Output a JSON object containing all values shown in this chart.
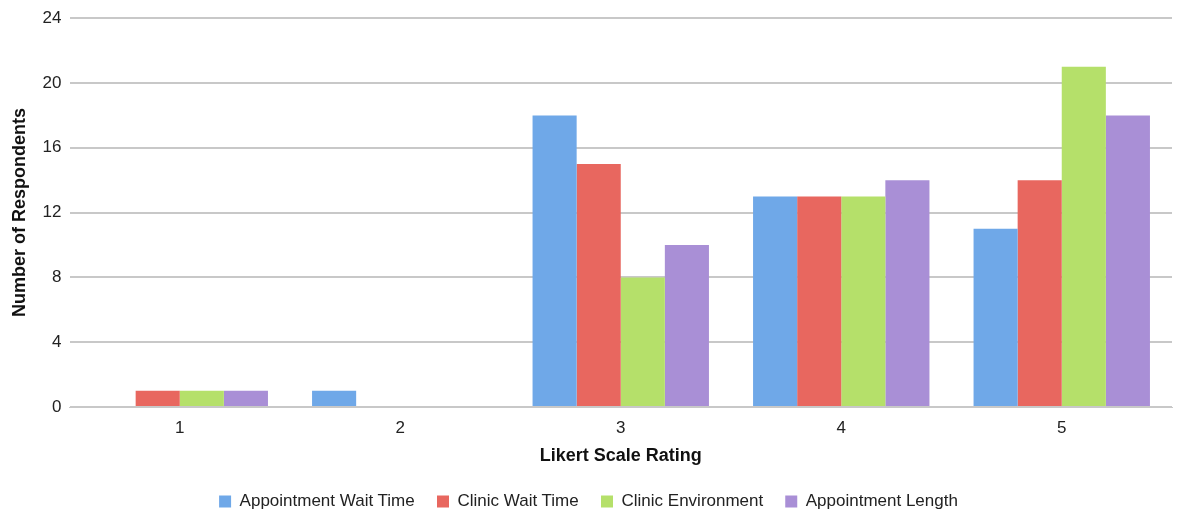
{
  "chart_data": {
    "type": "bar",
    "xlabel": "Likert Scale Rating",
    "ylabel": "Number of Respondents",
    "categories": [
      "1",
      "2",
      "3",
      "4",
      "5"
    ],
    "series": [
      {
        "name": "Appointment Wait Time",
        "color": "#6fa8e8",
        "values": [
          0,
          1,
          18,
          13,
          11
        ]
      },
      {
        "name": "Clinic Wait Time",
        "color": "#e8675f",
        "values": [
          1,
          0,
          15,
          13,
          14
        ]
      },
      {
        "name": "Clinic Environment",
        "color": "#b5e06a",
        "values": [
          1,
          0,
          8,
          13,
          21
        ]
      },
      {
        "name": "Appointment Length",
        "color": "#a98fd6",
        "values": [
          1,
          0,
          10,
          14,
          18
        ]
      }
    ],
    "ylim": [
      0,
      24
    ],
    "yticks": [
      0,
      4,
      8,
      12,
      16,
      20,
      24
    ],
    "grid": "y",
    "legend": "bottom"
  }
}
